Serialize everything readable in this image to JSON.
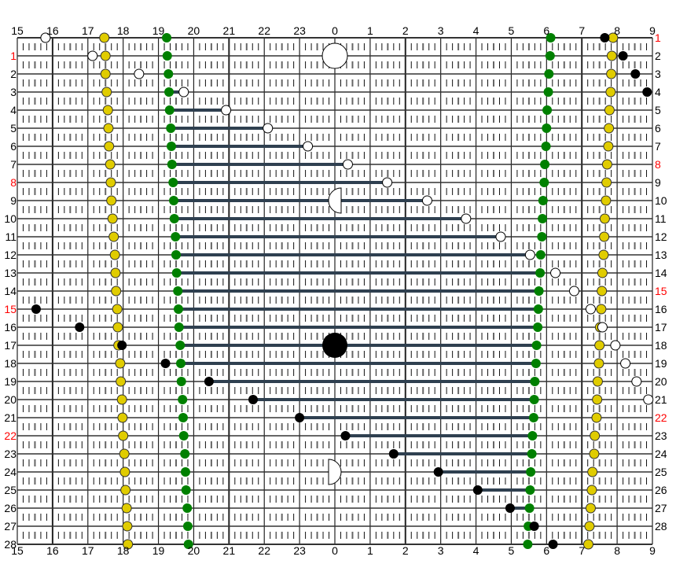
{
  "chart_data": {
    "type": "scatter",
    "x_ticks": [
      "15",
      "16",
      "17",
      "18",
      "19",
      "20",
      "21",
      "22",
      "23",
      "0",
      "1",
      "2",
      "3",
      "4",
      "5",
      "6",
      "7",
      "8",
      "9"
    ],
    "xlim": [
      "15:00",
      "09:00"
    ],
    "left_row_labels": [
      "",
      "1",
      "2",
      "3",
      "4",
      "5",
      "6",
      "7",
      "8",
      "9",
      "10",
      "11",
      "12",
      "13",
      "14",
      "15",
      "16",
      "17",
      "18",
      "19",
      "20",
      "21",
      "22",
      "23",
      "24",
      "25",
      "26",
      "27",
      "28"
    ],
    "right_row_labels": [
      "1",
      "2",
      "3",
      "4",
      "5",
      "6",
      "7",
      "8",
      "9",
      "10",
      "11",
      "12",
      "13",
      "14",
      "15",
      "16",
      "17",
      "18",
      "19",
      "20",
      "21",
      "22",
      "23",
      "24",
      "25",
      "26",
      "27",
      "28",
      ""
    ],
    "highlight_labels": [
      "1",
      "8",
      "15",
      "22"
    ],
    "grid": true,
    "colors": {
      "yellow": "#e0cc00",
      "green": "#008000",
      "bar": "#2f4050",
      "highlight": "#ff0000",
      "white": "#ffffff",
      "black": "#000000"
    },
    "yellow_left": [
      "17:28",
      "17:30",
      "17:30",
      "17:32",
      "17:34",
      "17:35",
      "17:36",
      "17:38",
      "17:39",
      "17:40",
      "17:42",
      "17:44",
      "17:46",
      "17:47",
      "17:48",
      "17:50",
      "17:51",
      "17:52",
      "17:55",
      "17:56",
      "17:58",
      "17:59",
      "18:00",
      "18:02",
      "18:03",
      "18:04",
      "18:06",
      "18:07",
      "18:08"
    ],
    "green_left": [
      "19:14",
      "19:15",
      "19:17",
      "19:18",
      "19:19",
      "19:21",
      "19:22",
      "19:23",
      "19:25",
      "19:26",
      "19:27",
      "19:29",
      "19:30",
      "19:31",
      "19:33",
      "19:34",
      "19:35",
      "19:37",
      "19:38",
      "19:39",
      "19:41",
      "19:42",
      "19:43",
      "19:45",
      "19:46",
      "19:47",
      "19:49",
      "19:50",
      "19:51"
    ],
    "green_right": [
      "06:07",
      "06:06",
      "06:04",
      "06:03",
      "06:01",
      "06:00",
      "05:59",
      "05:57",
      "05:56",
      "05:54",
      "05:53",
      "05:52",
      "05:50",
      "05:49",
      "05:47",
      "05:46",
      "05:45",
      "05:43",
      "05:42",
      "05:40",
      "05:39",
      "05:38",
      "05:36",
      "05:35",
      "05:33",
      "05:32",
      "05:31",
      "05:29",
      "05:28"
    ],
    "yellow_right": [
      "07:53",
      "07:51",
      "07:50",
      "07:49",
      "07:47",
      "07:46",
      "07:45",
      "07:43",
      "07:42",
      "07:41",
      "07:39",
      "07:38",
      "07:37",
      "07:35",
      "07:34",
      "07:33",
      "07:31",
      "07:30",
      "07:29",
      "07:27",
      "07:26",
      "07:25",
      "07:22",
      "07:21",
      "07:18",
      "07:17",
      "07:15",
      "07:13",
      "07:11"
    ],
    "white_points": [
      "15:48",
      "17:08",
      "18:27",
      "19:43",
      "20:55",
      "22:06",
      "23:14",
      "00:22",
      "01:29",
      "02:37",
      "03:43",
      "04:42",
      "05:32",
      "06:15",
      "06:47",
      "07:15",
      "07:35",
      "07:57",
      "08:14",
      "08:33",
      "08:53",
      null,
      null,
      null,
      null,
      null,
      null,
      null,
      null
    ],
    "black_points": [
      "07:39",
      "08:10",
      "08:31",
      "08:51",
      null,
      null,
      null,
      null,
      null,
      null,
      null,
      null,
      null,
      null,
      null,
      "15:32",
      "16:46",
      "17:58",
      "19:12",
      "20:26",
      "21:41",
      "23:00",
      "00:18",
      "01:40",
      "02:56",
      "04:03",
      "04:58",
      "05:39",
      "06:11"
    ],
    "bars": [
      null,
      null,
      null,
      [
        "19:18",
        "19:43"
      ],
      [
        "19:19",
        "20:55"
      ],
      [
        "19:21",
        "22:06"
      ],
      [
        "19:22",
        "23:14"
      ],
      [
        "19:23",
        "00:22"
      ],
      [
        "19:25",
        "01:29"
      ],
      [
        "19:26",
        "02:37"
      ],
      [
        "19:27",
        "03:43"
      ],
      [
        "19:29",
        "04:42"
      ],
      [
        "19:30",
        "05:32"
      ],
      [
        "19:31",
        "05:49"
      ],
      [
        "19:33",
        "05:47"
      ],
      [
        "19:34",
        "05:46"
      ],
      [
        "19:35",
        "05:45"
      ],
      [
        "19:37",
        "05:43"
      ],
      [
        "19:38",
        "05:42"
      ],
      [
        "20:26",
        "05:40"
      ],
      [
        "21:41",
        "05:39"
      ],
      [
        "23:00",
        "05:38"
      ],
      [
        "00:18",
        "05:36"
      ],
      [
        "01:40",
        "05:35"
      ],
      [
        "02:56",
        "05:33"
      ],
      [
        "04:03",
        "05:32"
      ],
      [
        "04:58",
        "05:31"
      ],
      null,
      null
    ],
    "phases": [
      {
        "row": 1,
        "phase": "full-white"
      },
      {
        "row": 9,
        "phase": "half-left"
      },
      {
        "row": 17,
        "phase": "full-black"
      },
      {
        "row": 24,
        "phase": "half-right"
      }
    ]
  }
}
